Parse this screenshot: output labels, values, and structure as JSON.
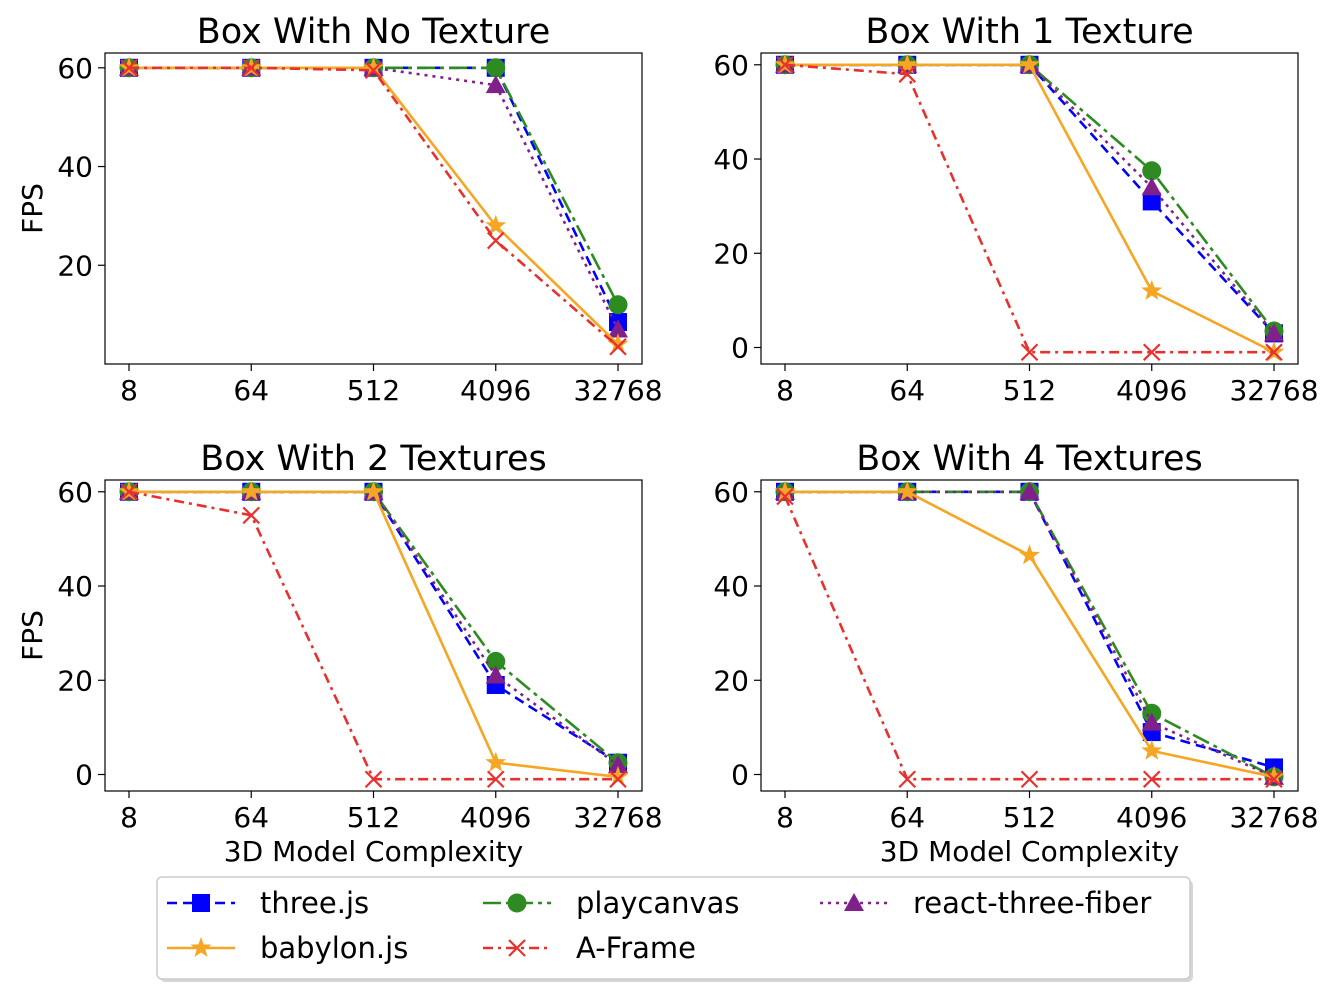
{
  "legend": {
    "placement": "bottom-center",
    "entries": [
      {
        "name": "three.js",
        "color": "#0000ff",
        "marker": "square",
        "dash": "dashed"
      },
      {
        "name": "playcanvas",
        "color": "#2e8b22",
        "marker": "circle",
        "dash": "long-dash-dot"
      },
      {
        "name": "react-three-fiber",
        "color": "#80208a",
        "marker": "triangle",
        "dash": "dotted"
      },
      {
        "name": "babylon.js",
        "color": "#f5a623",
        "marker": "star",
        "dash": "solid"
      },
      {
        "name": "A-Frame",
        "color": "#e8312e",
        "marker": "x",
        "dash": "dash-dot"
      }
    ]
  },
  "chart_data": [
    {
      "type": "line",
      "title": "Box With No Texture",
      "xlabel": "",
      "ylabel": "FPS",
      "x": [
        "8",
        "64",
        "512",
        "4096",
        "32768"
      ],
      "ylim": [
        0,
        63
      ],
      "yticks": [
        20,
        40,
        60
      ],
      "grid": false,
      "series": [
        {
          "name": "three.js",
          "values": [
            60,
            60,
            60,
            60,
            8.5
          ]
        },
        {
          "name": "playcanvas",
          "values": [
            60,
            60,
            60,
            60,
            12
          ]
        },
        {
          "name": "react-three-fiber",
          "values": [
            60,
            60,
            60,
            56.5,
            7
          ]
        },
        {
          "name": "babylon.js",
          "values": [
            60,
            60,
            60,
            28,
            4
          ]
        },
        {
          "name": "A-Frame",
          "values": [
            60,
            60,
            59.5,
            25,
            3.5
          ]
        }
      ]
    },
    {
      "type": "line",
      "title": "Box With 1 Texture",
      "xlabel": "",
      "ylabel": "",
      "x": [
        "8",
        "64",
        "512",
        "4096",
        "32768"
      ],
      "ylim": [
        -3.5,
        62.5
      ],
      "yticks": [
        0,
        20,
        40,
        60
      ],
      "grid": false,
      "series": [
        {
          "name": "three.js",
          "values": [
            60,
            60,
            60,
            31,
            3
          ]
        },
        {
          "name": "playcanvas",
          "values": [
            60,
            60,
            60,
            37.5,
            3.5
          ]
        },
        {
          "name": "react-three-fiber",
          "values": [
            60,
            60,
            60,
            34,
            3
          ]
        },
        {
          "name": "babylon.js",
          "values": [
            60,
            60,
            60,
            12,
            -1
          ]
        },
        {
          "name": "A-Frame",
          "values": [
            60,
            58,
            -1,
            -1,
            -1
          ]
        }
      ]
    },
    {
      "type": "line",
      "title": "Box With 2 Textures",
      "xlabel": "3D Model Complexity",
      "ylabel": "FPS",
      "x": [
        "8",
        "64",
        "512",
        "4096",
        "32768"
      ],
      "ylim": [
        -3.5,
        62.5
      ],
      "yticks": [
        0,
        20,
        40,
        60
      ],
      "grid": false,
      "series": [
        {
          "name": "three.js",
          "values": [
            60,
            60,
            60,
            19,
            2.5
          ]
        },
        {
          "name": "playcanvas",
          "values": [
            60,
            60,
            60,
            24,
            2.5
          ]
        },
        {
          "name": "react-three-fiber",
          "values": [
            60,
            60,
            60,
            21,
            2
          ]
        },
        {
          "name": "babylon.js",
          "values": [
            60,
            60,
            60,
            2.5,
            -0.5
          ]
        },
        {
          "name": "A-Frame",
          "values": [
            60,
            55,
            -1,
            -1,
            -1
          ]
        }
      ]
    },
    {
      "type": "line",
      "title": "Box With 4 Textures",
      "xlabel": "3D Model Complexity",
      "ylabel": "",
      "x": [
        "8",
        "64",
        "512",
        "4096",
        "32768"
      ],
      "ylim": [
        -3.5,
        62.5
      ],
      "yticks": [
        0,
        20,
        40,
        60
      ],
      "grid": false,
      "series": [
        {
          "name": "three.js",
          "values": [
            60,
            60,
            60,
            9,
            1.5
          ]
        },
        {
          "name": "playcanvas",
          "values": [
            60,
            60,
            60,
            13,
            -0.5
          ]
        },
        {
          "name": "react-three-fiber",
          "values": [
            60,
            60,
            60,
            11,
            -0.5
          ]
        },
        {
          "name": "babylon.js",
          "values": [
            60,
            60,
            46.5,
            5,
            -0.5
          ]
        },
        {
          "name": "A-Frame",
          "values": [
            59,
            -1,
            -1,
            -1,
            -1
          ]
        }
      ]
    }
  ]
}
